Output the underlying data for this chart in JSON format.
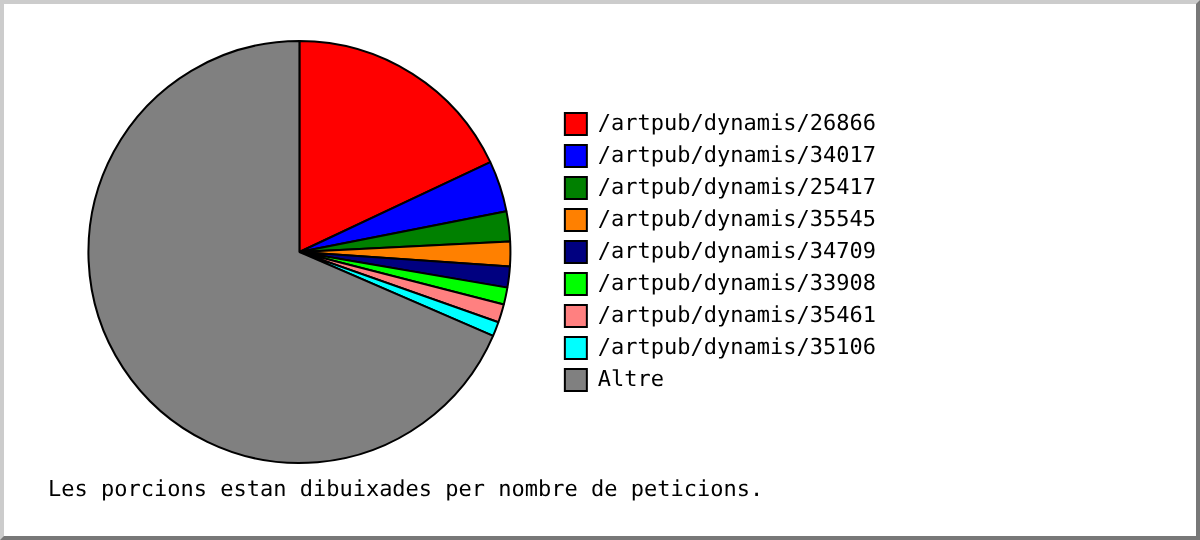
{
  "chart_data": {
    "type": "pie",
    "categories": [
      "/artpub/dynamis/26866",
      "/artpub/dynamis/34017",
      "/artpub/dynamis/25417",
      "/artpub/dynamis/35545",
      "/artpub/dynamis/34709",
      "/artpub/dynamis/33908",
      "/artpub/dynamis/35461",
      "/artpub/dynamis/35106",
      "Altre"
    ],
    "values": [
      18.0,
      3.9,
      2.3,
      1.9,
      1.6,
      1.3,
      1.4,
      1.1,
      68.5
    ],
    "colors": [
      "#ff0000",
      "#0000ff",
      "#008000",
      "#ff8000",
      "#000080",
      "#00ff00",
      "#ff8080",
      "#00ffff",
      "#808080"
    ],
    "legend": "right",
    "annotations": [
      "Les porcions estan dibuixades per nombre de peticions."
    ]
  }
}
